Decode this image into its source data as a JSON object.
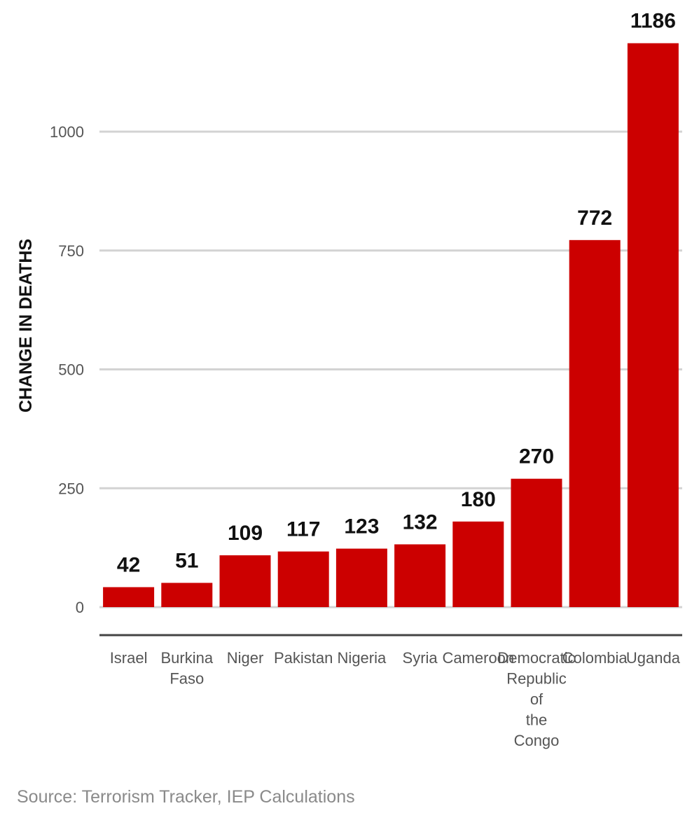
{
  "chart_data": {
    "type": "bar",
    "categories": [
      "Israel",
      "Burkina Faso",
      "Niger",
      "Pakistan",
      "Nigeria",
      "Syria",
      "Cameroon",
      "Democratic Republic of the Congo",
      "Colombia",
      "Uganda"
    ],
    "category_lines": [
      [
        "Israel"
      ],
      [
        "Burkina",
        "Faso"
      ],
      [
        "Niger"
      ],
      [
        "Pakistan"
      ],
      [
        "Nigeria"
      ],
      [
        "Syria"
      ],
      [
        "Cameroon"
      ],
      [
        "Democratic",
        "Republic",
        "of",
        "the",
        "Congo"
      ],
      [
        "Colombia"
      ],
      [
        "Uganda"
      ]
    ],
    "values": [
      42,
      51,
      109,
      117,
      123,
      132,
      180,
      270,
      772,
      1186
    ],
    "ylabel": "CHANGE IN DEATHS",
    "xlabel": "",
    "yticks": [
      0,
      250,
      500,
      750,
      1000
    ],
    "ylim": [
      -50,
      1186
    ],
    "grid": true,
    "bar_color": "#cc0000",
    "grid_color": "#d3d3d3",
    "axis_color": "#444444"
  },
  "source_text": "Source: Terrorism Tracker, IEP Calculations"
}
